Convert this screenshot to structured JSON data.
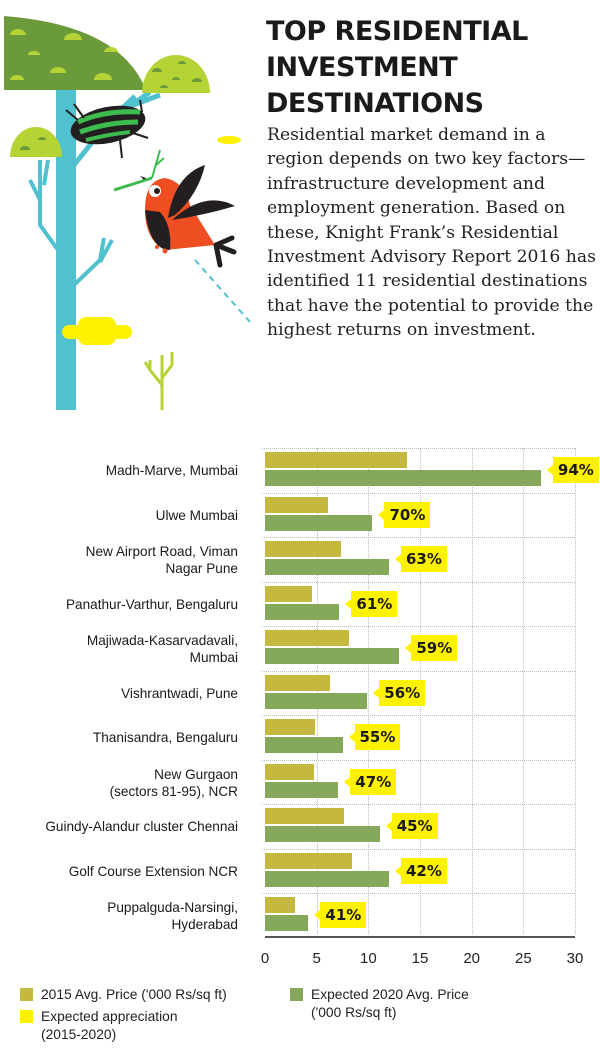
{
  "header": {
    "title_lines": [
      "TOP RESIDENTIAL",
      "INVESTMENT",
      "DESTINATIONS"
    ],
    "intro": "Residential market demand in a region depends on two key factors—infrastructure development and employment generation. Based on these, Knight Frank’s Residential Investment Advisory Report 2016 has identified 11 residential destinations that have the potential to provide the highest returns on investment."
  },
  "illustration": {
    "description": "tree-with-nest-and-red-bird",
    "colors": {
      "trunk": "#4fc1cf",
      "canopy_dark": "#6a9a3a",
      "canopy_light": "#b5d334",
      "bird": "#ef4e23",
      "wing": "#231f20",
      "cloud": "#fff200"
    }
  },
  "colors": {
    "price_2015": "#c5b83e",
    "price_2020": "#86a85a",
    "appreciation": "#fff200"
  },
  "chart_data": {
    "type": "bar",
    "orientation": "horizontal",
    "title": "TOP RESIDENTIAL INVESTMENT DESTINATIONS",
    "xlabel": "",
    "ylabel": "",
    "xlim": [
      0,
      30
    ],
    "xticks": [
      "0",
      "5",
      "10",
      "15",
      "20",
      "25",
      "30"
    ],
    "grid": true,
    "legend_position": "bottom",
    "categories": [
      "Madh-Marve, Mumbai",
      "Ulwe Mumbai",
      "New Airport Road, Viman Nagar Pune",
      "Panathur-Varthur, Bengaluru",
      "Majiwada-Kasarvadavali, Mumbai",
      "Vishrantwadi, Pune",
      "Thanisandra, Bengaluru",
      "New Gurgaon (sectors 81-95), NCR",
      "Guindy-Alandur cluster Chennai",
      "Golf Course Extension NCR",
      "Puppalguda-Narsingi, Hyderabad"
    ],
    "series": [
      {
        "name": "2015 Avg. Price ('000 Rs/sq ft)",
        "values": [
          13.7,
          6.1,
          7.4,
          4.5,
          8.1,
          6.3,
          4.8,
          4.7,
          7.6,
          8.4,
          2.9
        ]
      },
      {
        "name": "Expected 2020 Avg. Price ('000 Rs/sq ft)",
        "values": [
          26.7,
          10.4,
          12.0,
          7.2,
          13.0,
          9.9,
          7.5,
          7.1,
          11.1,
          12.0,
          4.2
        ]
      },
      {
        "name": "Expected appreciation (2015-2020)",
        "values": [
          94,
          70,
          63,
          61,
          59,
          56,
          55,
          47,
          45,
          42,
          41
        ],
        "unit": "%"
      }
    ]
  },
  "rows": [
    {
      "label_lines": [
        "Madh-Marve, Mumbai"
      ],
      "appreciation": "94%"
    },
    {
      "label_lines": [
        "Ulwe Mumbai"
      ],
      "appreciation": "70%"
    },
    {
      "label_lines": [
        "New Airport Road, Viman",
        "Nagar Pune"
      ],
      "appreciation": "63%"
    },
    {
      "label_lines": [
        "Panathur-Varthur, Bengaluru"
      ],
      "appreciation": "61%"
    },
    {
      "label_lines": [
        "Majiwada-Kasarvadavali,",
        "Mumbai"
      ],
      "appreciation": "59%"
    },
    {
      "label_lines": [
        "Vishrantwadi, Pune"
      ],
      "appreciation": "56%"
    },
    {
      "label_lines": [
        "Thanisandra, Bengaluru"
      ],
      "appreciation": "55%"
    },
    {
      "label_lines": [
        "New Gurgaon",
        "(sectors 81-95), NCR"
      ],
      "appreciation": "47%"
    },
    {
      "label_lines": [
        "Guindy-Alandur cluster Chennai"
      ],
      "appreciation": "45%"
    },
    {
      "label_lines": [
        "Golf Course Extension NCR"
      ],
      "appreciation": "42%"
    },
    {
      "label_lines": [
        "Puppalguda-Narsingi,",
        "Hyderabad"
      ],
      "appreciation": "41%"
    }
  ],
  "legend": {
    "items": [
      {
        "label_lines": [
          "2015 Avg. Price ('000 Rs/sq ft)"
        ]
      },
      {
        "label_lines": [
          "Expected 2020 Avg. Price",
          "('000 Rs/sq ft)"
        ]
      },
      {
        "label_lines": [
          "Expected appreciation",
          "(2015-2020)"
        ]
      }
    ]
  }
}
